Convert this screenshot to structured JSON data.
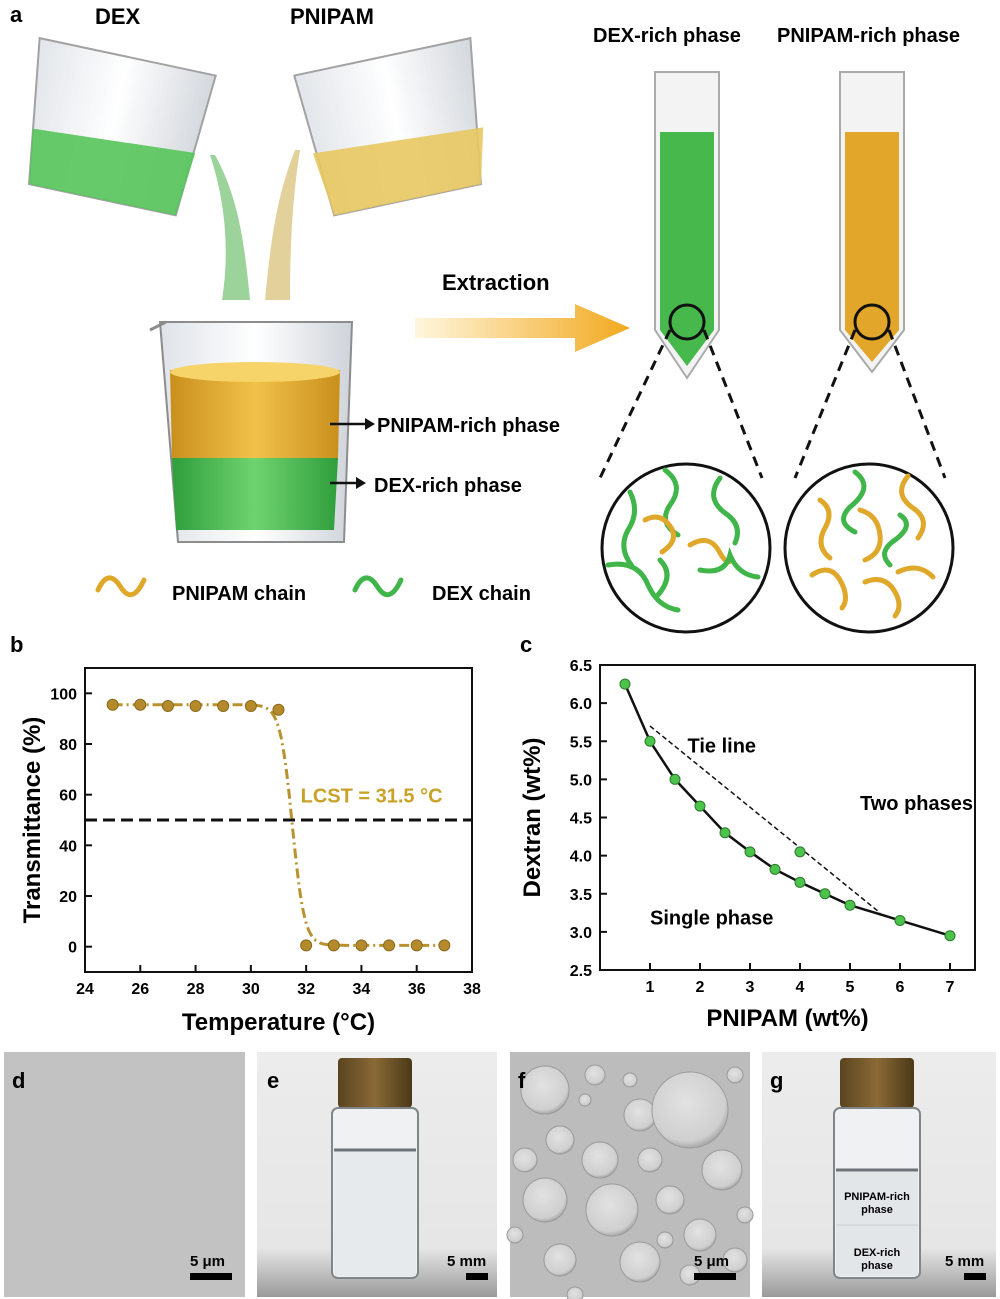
{
  "panel_a": {
    "label": "a",
    "dex_label": "DEX",
    "pnipam_label": "PNIPAM",
    "dex_rich_tube_label": "DEX-rich phase",
    "pnipam_rich_tube_label": "PNIPAM-rich phase",
    "extraction_label": "Extraction",
    "beaker_top_label": "PNIPAM-rich phase",
    "beaker_bottom_label": "DEX-rich phase",
    "legend_pnipam": "PNIPAM chain",
    "legend_dex": "DEX chain",
    "colors": {
      "dex_green": "#3fb54a",
      "pnipam_gold": "#e0a82a",
      "arrow_orange": "#f2a91e"
    }
  },
  "panel_b": {
    "label": "b"
  },
  "panel_c": {
    "label": "c"
  },
  "chart_data": [
    {
      "type": "line",
      "xlabel": "Temperature (°C)",
      "ylabel": "Transmittance (%)",
      "xlim": [
        24,
        38
      ],
      "ylim": [
        -10,
        110
      ],
      "xticks": [
        "24",
        "26",
        "28",
        "30",
        "32",
        "34",
        "36",
        "38"
      ],
      "yticks": [
        "0",
        "20",
        "40",
        "60",
        "80",
        "100"
      ],
      "annotation": "LCST = 31.5 °C",
      "reference_line_y": 50,
      "series": [
        {
          "x": [
            25,
            26,
            27,
            28,
            29,
            30,
            31,
            32,
            33,
            34,
            35,
            36,
            37
          ],
          "y": [
            95.5,
            95.5,
            95,
            95,
            95,
            95,
            93.5,
            0.5,
            0.5,
            0.5,
            0.5,
            0.5,
            0.5
          ]
        }
      ],
      "colors": {
        "marker": "#b58a2a",
        "line": "#b8922e",
        "annotation": "#c9a227"
      }
    },
    {
      "type": "scatter",
      "xlabel": "PNIPAM (wt%)",
      "ylabel": "Dextran (wt%)",
      "xlim": [
        0,
        7.5
      ],
      "ylim": [
        2.5,
        6.5
      ],
      "xticks": [
        "1",
        "2",
        "3",
        "4",
        "5",
        "6",
        "7"
      ],
      "yticks": [
        "2.5",
        "3.0",
        "3.5",
        "4.0",
        "4.5",
        "5.0",
        "5.5",
        "6.0",
        "6.5"
      ],
      "region_labels": {
        "tie_line": "Tie line",
        "two_phases": "Two phases",
        "single_phase": "Single phase"
      },
      "series": [
        {
          "x": [
            0.5,
            1.0,
            1.5,
            2.0,
            2.5,
            3.0,
            3.5,
            4.0,
            4.5,
            5.0,
            6.0,
            7.0
          ],
          "y": [
            6.25,
            5.5,
            5.0,
            4.65,
            4.3,
            4.05,
            3.82,
            3.65,
            3.5,
            3.35,
            3.15,
            2.95
          ]
        }
      ],
      "extra_point": {
        "x": 4.0,
        "y": 4.05
      },
      "tie_line": {
        "x": [
          1.0,
          5.6
        ],
        "y": [
          5.7,
          3.25
        ]
      },
      "colors": {
        "marker": "#4cc44c"
      }
    }
  ],
  "micrographs": {
    "d": {
      "label": "d",
      "scale": "5 μm"
    },
    "e": {
      "label": "e",
      "scale": "5 mm"
    },
    "f": {
      "label": "f",
      "scale": "5 μm"
    },
    "g": {
      "label": "g",
      "scale": "5 mm",
      "top_phase": "PNIPAM-rich\nphase",
      "top_phase_l1": "PNIPAM-rich",
      "top_phase_l2": "phase",
      "bottom_phase_l1": "DEX-rich",
      "bottom_phase_l2": "phase"
    }
  }
}
